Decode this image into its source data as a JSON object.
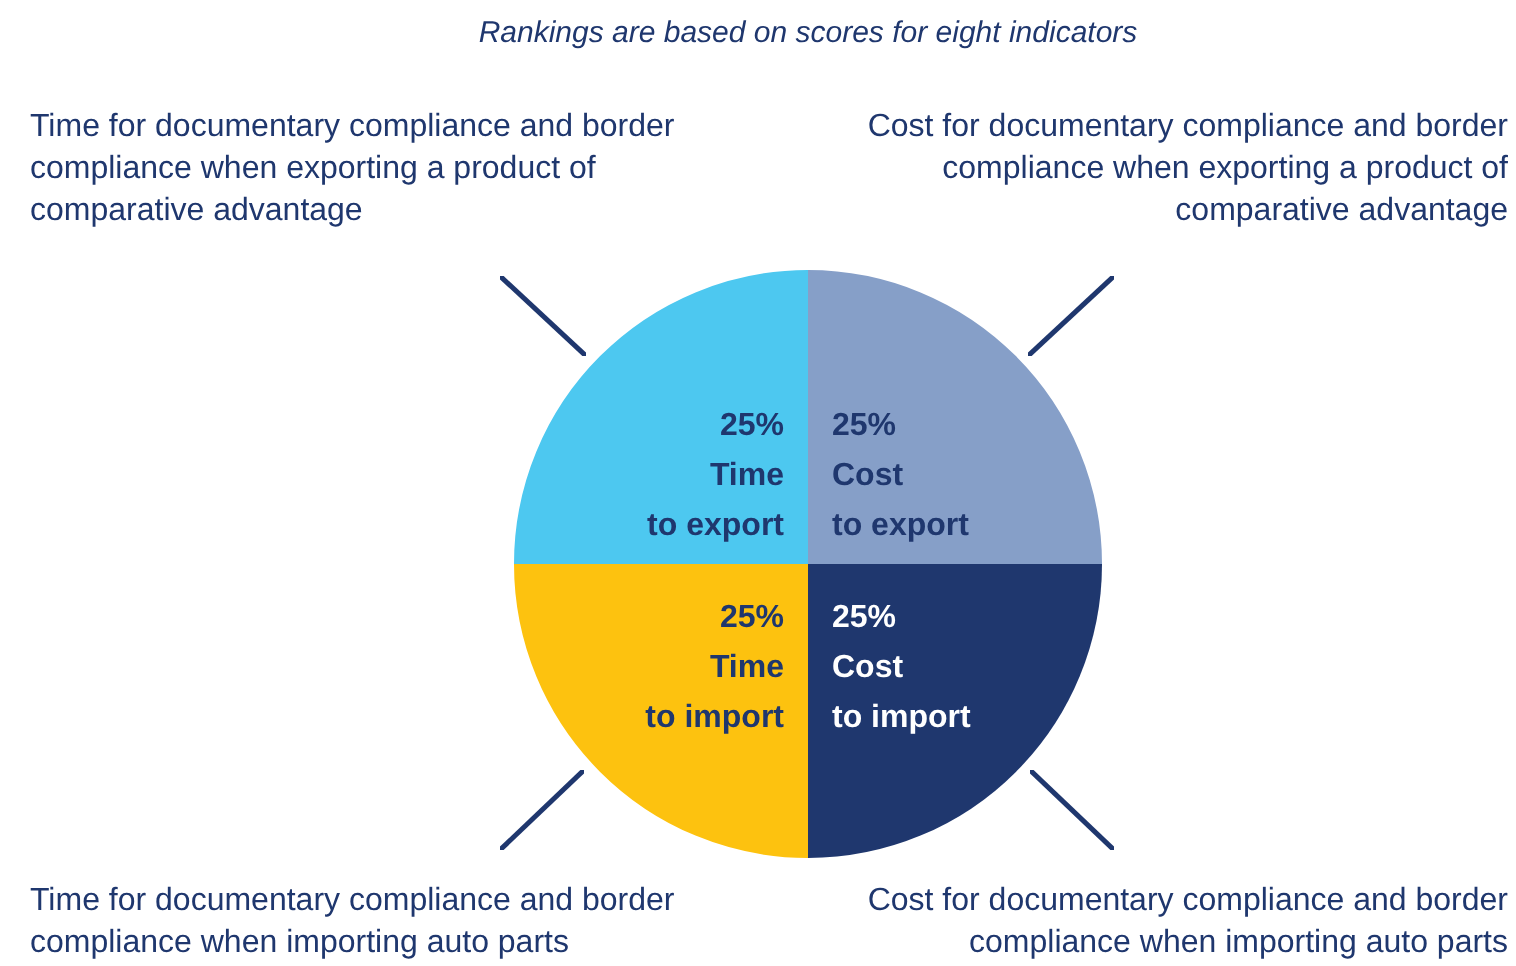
{
  "chart_data": {
    "type": "pie",
    "title": "Rankings are based on scores for eight indicators",
    "categories": [
      "Cost to export",
      "Cost to import",
      "Time to import",
      "Time to export"
    ],
    "values": [
      25,
      25,
      25,
      25
    ],
    "colors": [
      "#869fc8",
      "#1f376e",
      "#fdc20f",
      "#4dc8f0"
    ],
    "value_labels": [
      "25%",
      "25%",
      "25%",
      "25%"
    ],
    "legend": false,
    "annotations": [
      "Time for documentary compliance and border compliance when exporting a product of comparative advantage",
      "Cost for documentary compliance and border compliance when exporting a product of comparative advantage",
      "Time for documentary compliance and border compliance when importing auto parts",
      "Cost for documentary compliance and border compliance when importing auto parts"
    ]
  }
}
